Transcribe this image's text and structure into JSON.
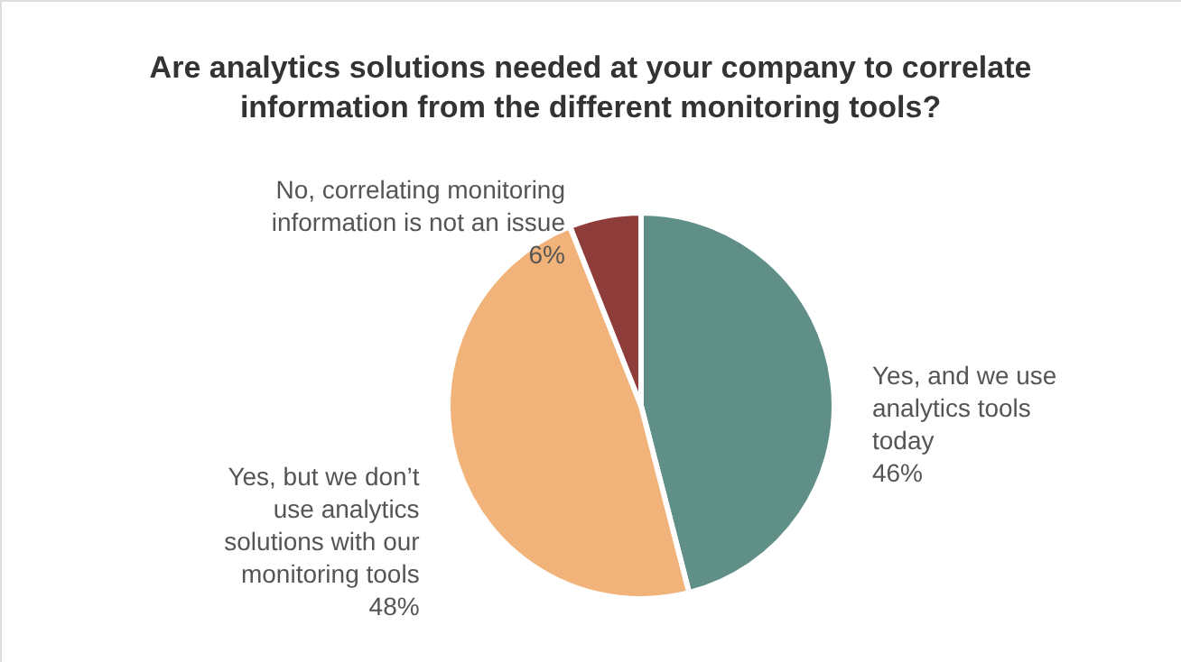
{
  "chart_data": {
    "type": "pie",
    "title": "Are analytics solutions needed at your company to correlate information from the different monitoring tools?",
    "categories": [
      "Yes, and we use analytics tools today",
      "Yes, but we don’t use analytics solutions with our monitoring tools",
      "No, correlating monitoring information is not an issue"
    ],
    "values": [
      46,
      48,
      6
    ],
    "value_labels": [
      "46%",
      "48%",
      "6%"
    ],
    "colors": [
      "#5f8f87",
      "#f2b37a",
      "#8e3d3b"
    ]
  }
}
